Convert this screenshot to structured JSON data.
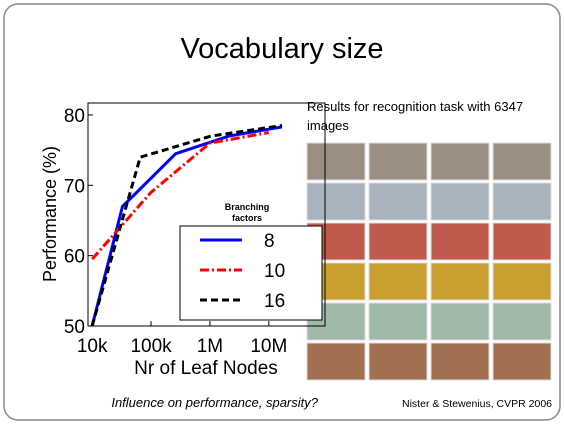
{
  "slide": {
    "title": "Vocabulary size",
    "caption": "Results for recognition task with 6347 images",
    "footer": "Influence on performance, sparsity?",
    "citation": "Nister & Stewenius, CVPR 2006"
  },
  "chart_data": {
    "type": "line",
    "xlabel": "Nr of Leaf Nodes",
    "ylabel": "Performance (%)",
    "xscale": "log",
    "xlim": [
      8500,
      90000000
    ],
    "ylim": [
      50,
      81.7
    ],
    "xticks": [
      {
        "value": 10000,
        "label": "10k"
      },
      {
        "value": 100000,
        "label": "100k"
      },
      {
        "value": 1000000,
        "label": "1M"
      },
      {
        "value": 10000000,
        "label": "10M"
      }
    ],
    "yticks": [
      50,
      60,
      70,
      80
    ],
    "legend_title": "Branching factors",
    "series": [
      {
        "name": "8",
        "color": "#0000ff",
        "dash": "solid",
        "x": [
          10000,
          32768,
          262144,
          2097152,
          16777216
        ],
        "values": [
          50,
          67,
          74.5,
          77,
          78.3
        ]
      },
      {
        "name": "10",
        "color": "#ff0000",
        "dash": "dashdot",
        "x": [
          10000,
          100000,
          1000000,
          10000000
        ],
        "values": [
          59.5,
          69,
          76,
          77.5
        ]
      },
      {
        "name": "16",
        "color": "#000000",
        "dash": "dashed",
        "x": [
          10000,
          65536,
          1048576,
          16777216
        ],
        "values": [
          50,
          74,
          77,
          78.5
        ]
      }
    ]
  }
}
